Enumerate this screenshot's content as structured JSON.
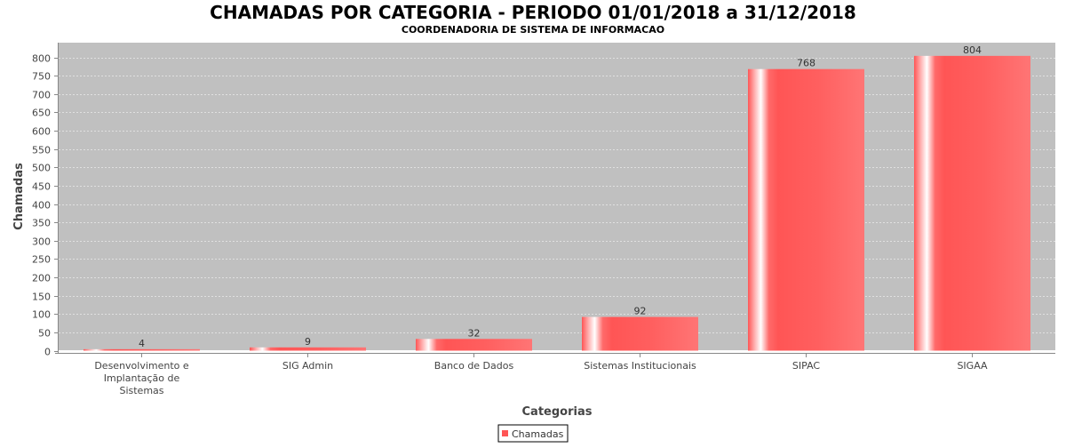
{
  "chart_data": {
    "type": "bar",
    "title": "CHAMADAS POR CATEGORIA - PERIODO 01/01/2018 a 31/12/2018",
    "subtitle": "COORDENADORIA DE SISTEMA DE INFORMACAO",
    "xlabel": "Categorias",
    "ylabel": "Chamadas",
    "categories": [
      [
        "Desenvolvimento e",
        "Implantação de",
        "Sistemas"
      ],
      [
        "SIG Admin"
      ],
      [
        "Banco de Dados"
      ],
      [
        "Sistemas Institucionais"
      ],
      [
        "SIPAC"
      ],
      [
        "SIGAA"
      ]
    ],
    "series": [
      {
        "name": "Chamadas",
        "values": [
          4,
          9,
          32,
          92,
          768,
          804
        ],
        "color": "#ff5555"
      }
    ],
    "ylim": [
      0,
      840
    ],
    "yticks": [
      0,
      50,
      100,
      150,
      200,
      250,
      300,
      350,
      400,
      450,
      500,
      550,
      600,
      650,
      700,
      750,
      800
    ],
    "grid": true,
    "legend_position": "bottom-center",
    "plot_background": "#c0c0c0"
  }
}
